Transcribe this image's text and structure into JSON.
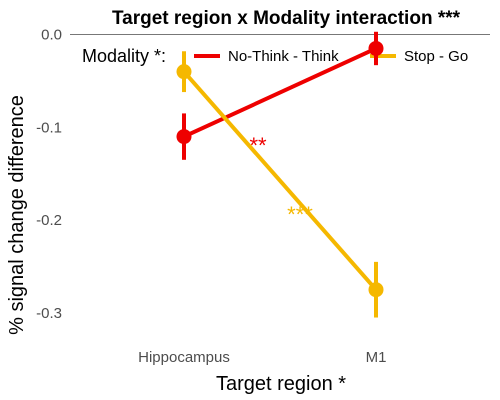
{
  "chart_data": {
    "type": "line",
    "title": "Target region x Modality interaction ***",
    "xlabel": "Target region *",
    "ylabel": "% signal change difference",
    "categories": [
      "Hippocampus",
      "M1"
    ],
    "ylim": [
      -0.34,
      0.02
    ],
    "yticks": [
      0.0,
      -0.1,
      -0.2,
      -0.3
    ],
    "ytick_labels": [
      "0.0",
      "-0.1",
      "-0.2",
      "-0.3"
    ],
    "legend_title": "Modality *:",
    "series": [
      {
        "name": "No-Think - Think",
        "color": "#ee0000",
        "values": [
          -0.11,
          -0.015
        ],
        "errors": [
          0.025,
          0.018
        ],
        "annotation": "**"
      },
      {
        "name": "Stop - Go",
        "color": "#f5b800",
        "values": [
          -0.04,
          -0.275
        ],
        "errors": [
          0.022,
          0.03
        ],
        "annotation": "***"
      }
    ]
  }
}
